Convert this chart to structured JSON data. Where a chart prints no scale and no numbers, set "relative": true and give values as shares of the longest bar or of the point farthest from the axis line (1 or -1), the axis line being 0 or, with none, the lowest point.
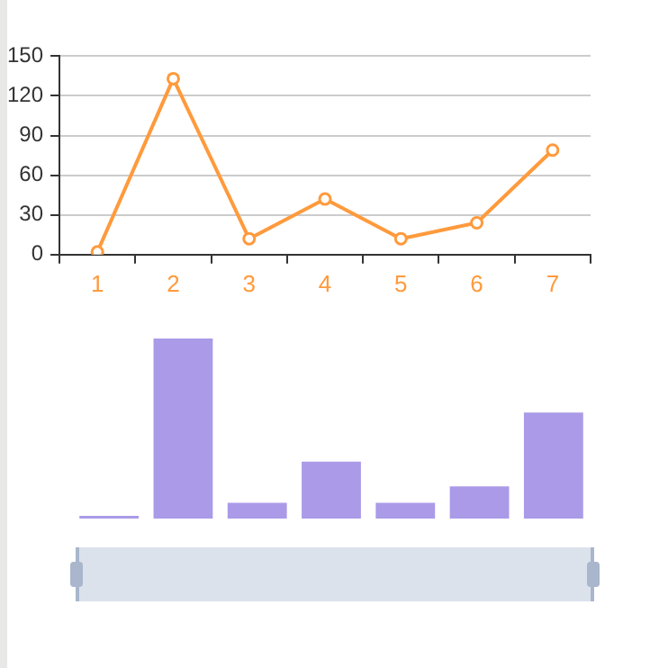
{
  "chart_data": [
    {
      "type": "line",
      "categories": [
        "1",
        "2",
        "3",
        "4",
        "5",
        "6",
        "7"
      ],
      "series": [
        {
          "color": "#ff9a3c",
          "values": [
            2,
            133,
            12,
            42,
            12,
            24,
            79
          ]
        }
      ],
      "ylim": [
        0,
        150
      ],
      "yticks": [
        0,
        30,
        60,
        90,
        120,
        150
      ],
      "grid": "y",
      "marker": "circle",
      "line_style": "solid"
    },
    {
      "type": "bar",
      "relative": true,
      "categories": [
        null,
        null,
        null,
        null,
        null,
        null,
        null
      ],
      "series": [
        {
          "color": "#ab9ae8",
          "values": [
            0.015,
            1,
            0.087,
            0.316,
            0.087,
            0.179,
            0.589
          ]
        }
      ]
    }
  ]
}
